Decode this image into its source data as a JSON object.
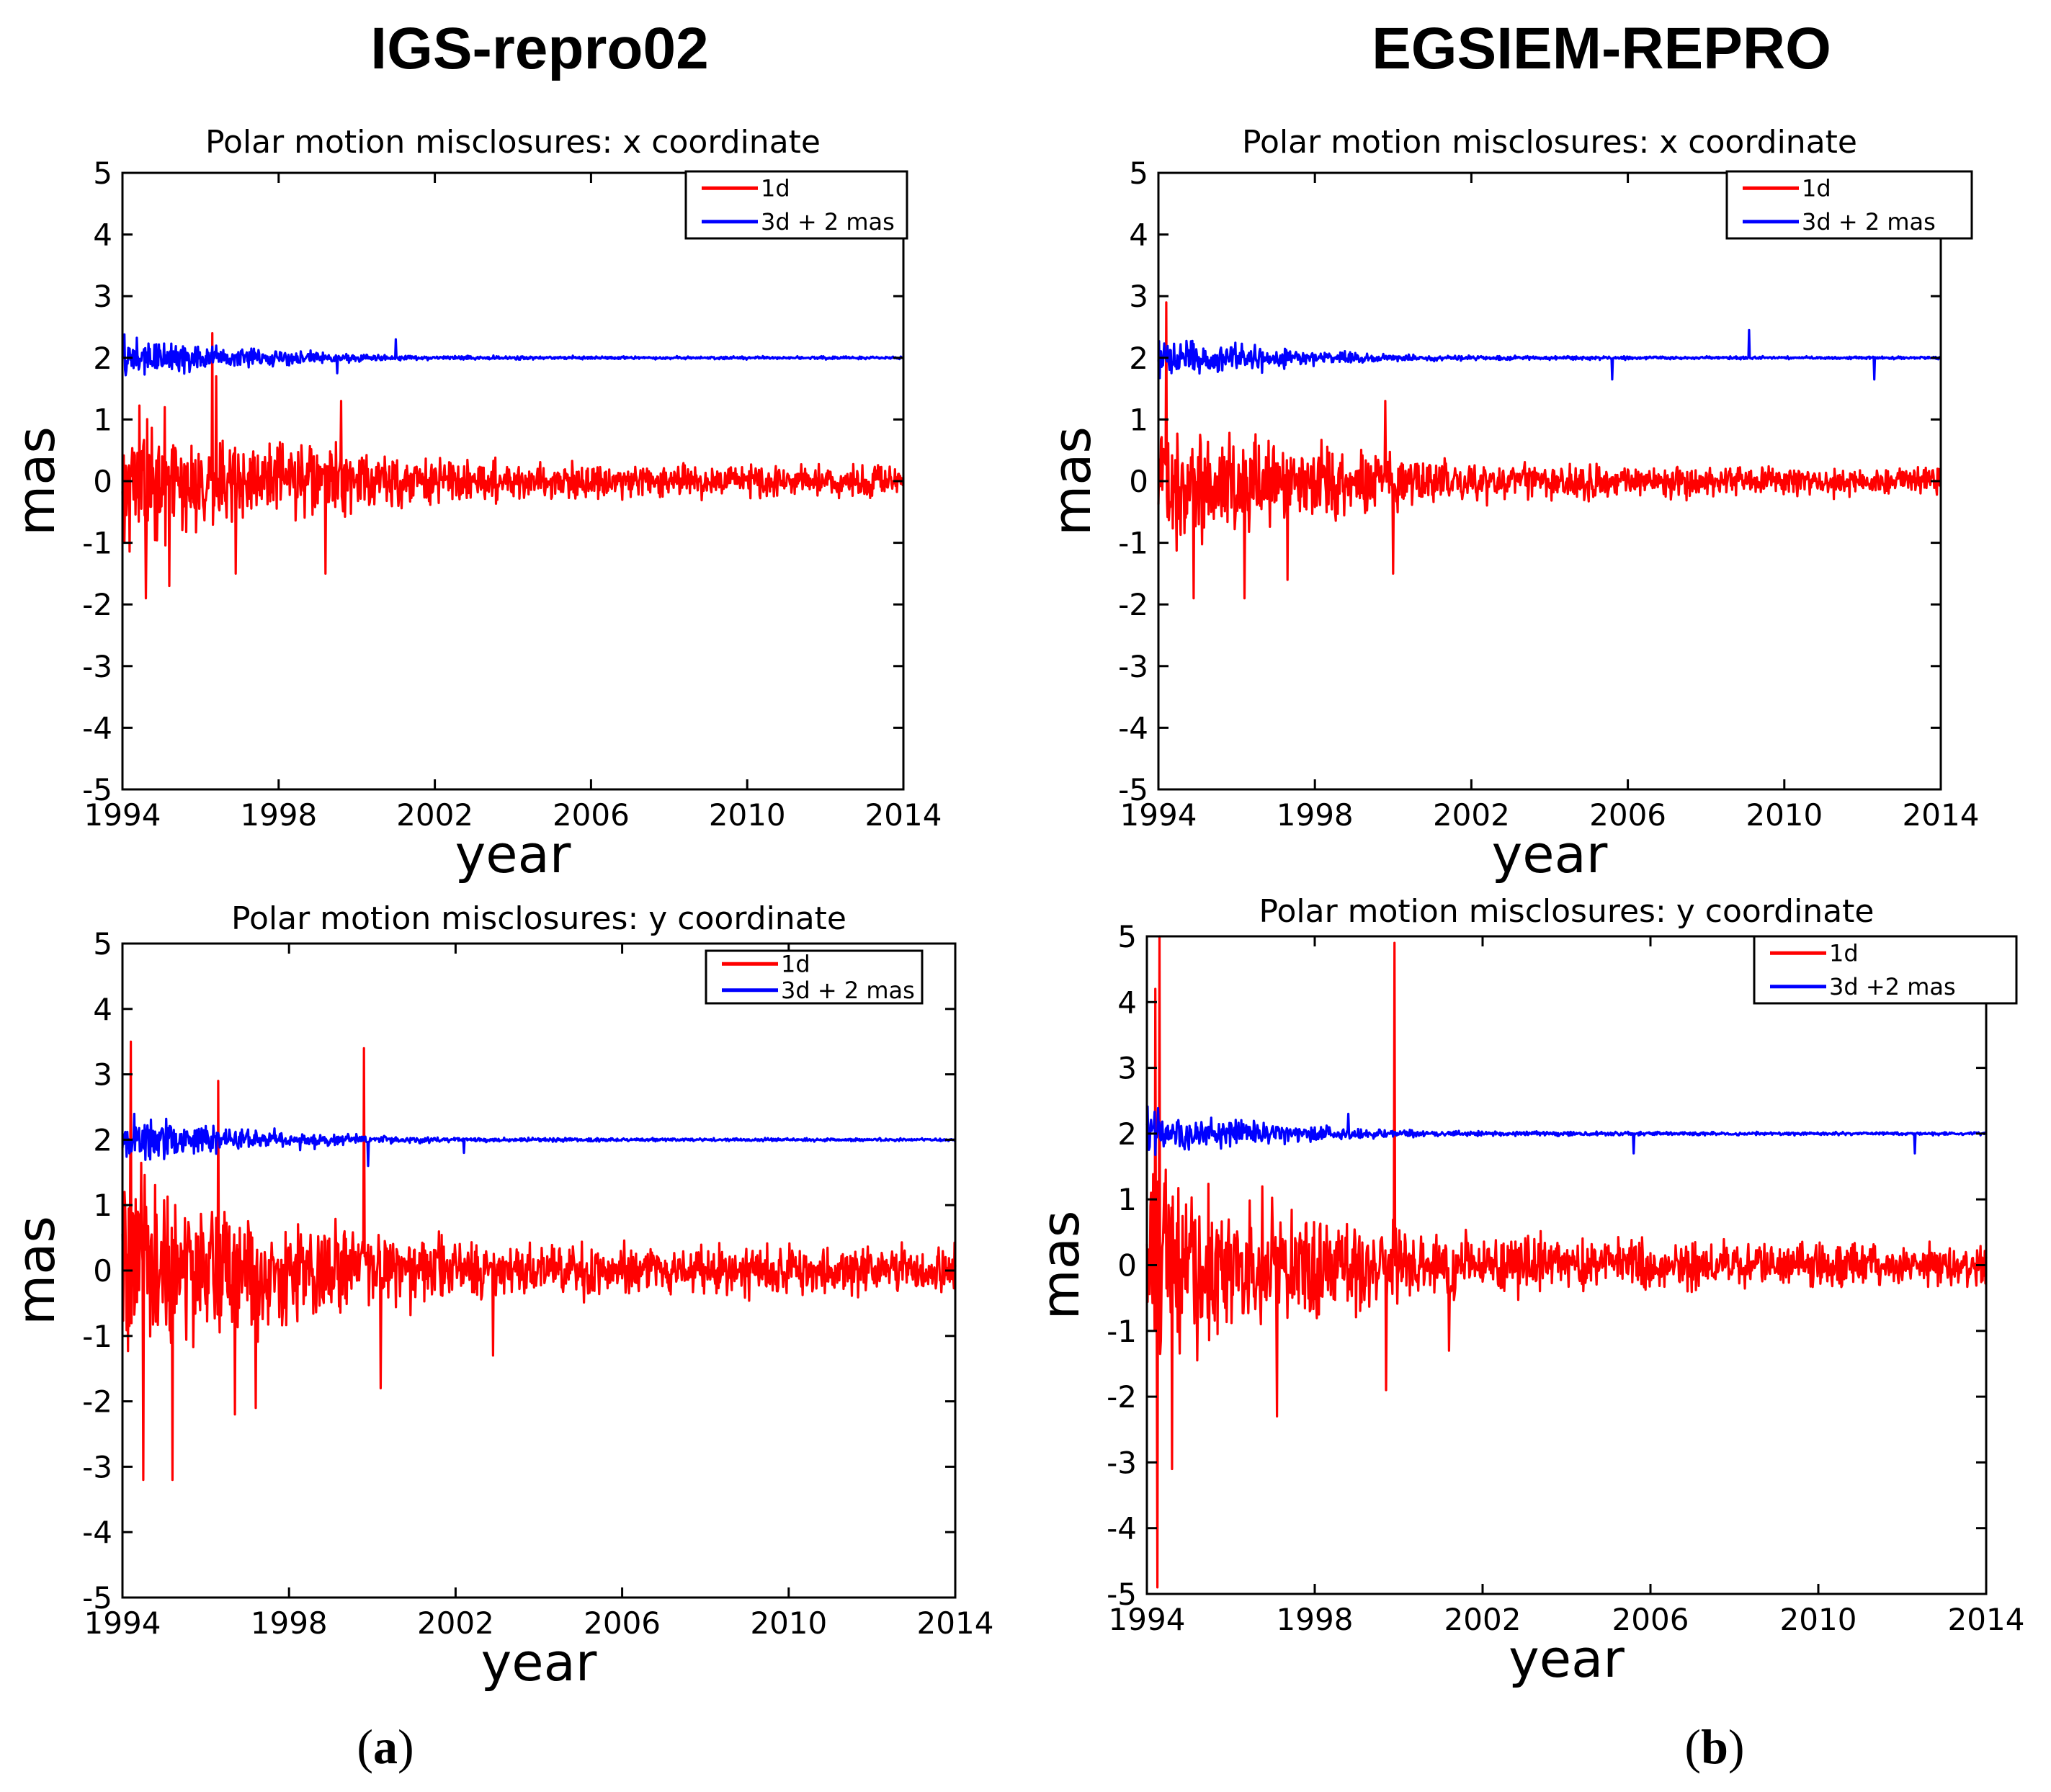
{
  "column_titles": {
    "left": "IGS-repro02",
    "right": "EGSIEM-REPRO"
  },
  "panel_labels": {
    "left_open": "(",
    "left_letter": "a",
    "left_close": ")",
    "right_open": "(",
    "right_letter": "b",
    "right_close": ")"
  },
  "colors": {
    "series_1d": "#ff0000",
    "series_3d": "#0000ff",
    "axes": "#000000"
  },
  "chart_data": [
    {
      "id": "igs-x",
      "type": "line",
      "title": "Polar motion misclosures: x coordinate",
      "xlabel": "year",
      "ylabel": "mas",
      "xlim": [
        1994,
        2014
      ],
      "ylim": [
        -5,
        5
      ],
      "xticks": [
        "1994",
        "1998",
        "2002",
        "2006",
        "2010",
        "2014"
      ],
      "yticks": [
        "5",
        "4",
        "3",
        "2",
        "1",
        "0",
        "-1",
        "-2",
        "-3",
        "-4",
        "-5"
      ],
      "legend": [
        "1d",
        "3d + 2 mas"
      ],
      "legend_position": "top-right",
      "series": [
        {
          "name": "1d",
          "color": "#ff0000",
          "center": 0,
          "env": [
            [
              1994,
              1.4
            ],
            [
              1995,
              1.3
            ],
            [
              1996,
              1.1
            ],
            [
              1998,
              0.95
            ],
            [
              2000,
              0.75
            ],
            [
              2002,
              0.5
            ],
            [
              2006,
              0.38
            ],
            [
              2014,
              0.32
            ]
          ],
          "max": 2.4,
          "min": -1.9,
          "spikes": [
            [
              1996.3,
              2.4
            ],
            [
              1996.4,
              1.7
            ],
            [
              1994.6,
              -1.9
            ],
            [
              1995.2,
              -1.7
            ],
            [
              1996.9,
              -1.5
            ],
            [
              1999.2,
              -1.5
            ],
            [
              1999.6,
              1.3
            ]
          ]
        },
        {
          "name": "3d + 2 mas",
          "color": "#0000ff",
          "center": 2,
          "env": [
            [
              1994,
              0.45
            ],
            [
              1995,
              0.42
            ],
            [
              1996,
              0.3
            ],
            [
              1998,
              0.17
            ],
            [
              2000,
              0.09
            ],
            [
              2002,
              0.05
            ],
            [
              2006,
              0.035
            ],
            [
              2014,
              0.03
            ]
          ],
          "max": 2.5,
          "min": 1.4,
          "spikes": [
            [
              2001.0,
              2.3
            ],
            [
              1999.5,
              1.75
            ]
          ]
        }
      ]
    },
    {
      "id": "egsiem-x",
      "type": "line",
      "title": "Polar motion misclosures: x coordinate",
      "xlabel": "year",
      "ylabel": "mas",
      "xlim": [
        1994,
        2014
      ],
      "ylim": [
        -5,
        5
      ],
      "xticks": [
        "1994",
        "1998",
        "2002",
        "2006",
        "2010",
        "2014"
      ],
      "yticks": [
        "5",
        "4",
        "3",
        "2",
        "1",
        "0",
        "-1",
        "-2",
        "-3",
        "-4",
        "-5"
      ],
      "legend": [
        "1d",
        "3d + 2 mas"
      ],
      "legend_position": "top-right",
      "series": [
        {
          "name": "1d",
          "color": "#ff0000",
          "center": 0,
          "env": [
            [
              1994,
              1.5
            ],
            [
              1995,
              1.35
            ],
            [
              1996,
              1.1
            ],
            [
              1998,
              0.9
            ],
            [
              2000,
              0.6
            ],
            [
              2002,
              0.42
            ],
            [
              2006,
              0.35
            ],
            [
              2014,
              0.3
            ]
          ],
          "max": 2.9,
          "min": -1.9,
          "spikes": [
            [
              1994.2,
              2.9
            ],
            [
              1994.9,
              -1.9
            ],
            [
              1996.2,
              -1.9
            ],
            [
              1999.8,
              1.3
            ],
            [
              2000.0,
              -1.5
            ],
            [
              1997.3,
              -1.6
            ]
          ]
        },
        {
          "name": "3d + 2 mas",
          "color": "#0000ff",
          "center": 2,
          "env": [
            [
              1994,
              0.45
            ],
            [
              1995,
              0.42
            ],
            [
              1996,
              0.3
            ],
            [
              1998,
              0.16
            ],
            [
              2000,
              0.08
            ],
            [
              2002,
              0.05
            ],
            [
              2006,
              0.035
            ],
            [
              2014,
              0.03
            ]
          ],
          "max": 2.45,
          "min": 1.5,
          "spikes": [
            [
              2009.1,
              2.45
            ],
            [
              2005.6,
              1.65
            ],
            [
              2012.3,
              1.65
            ]
          ]
        }
      ]
    },
    {
      "id": "igs-y",
      "type": "line",
      "title": "Polar motion misclosures: y coordinate",
      "xlabel": "year",
      "ylabel": "mas",
      "xlim": [
        1994,
        2014
      ],
      "ylim": [
        -5,
        5
      ],
      "xticks": [
        "1994",
        "1998",
        "2002",
        "2006",
        "2010",
        "2014"
      ],
      "yticks": [
        "5",
        "4",
        "3",
        "2",
        "1",
        "0",
        "-1",
        "-2",
        "-3",
        "-4",
        "-5"
      ],
      "legend": [
        "1d",
        "3d + 2 mas"
      ],
      "legend_position": "top-right",
      "series": [
        {
          "name": "1d",
          "color": "#ff0000",
          "center": 0,
          "env": [
            [
              1994,
              2.0
            ],
            [
              1995,
              1.8
            ],
            [
              1996,
              1.5
            ],
            [
              1998,
              1.15
            ],
            [
              2000,
              0.85
            ],
            [
              2002,
              0.65
            ],
            [
              2006,
              0.55
            ],
            [
              2014,
              0.5
            ]
          ],
          "max": 3.5,
          "min": -3.2,
          "spikes": [
            [
              1994.2,
              3.5
            ],
            [
              1994.5,
              -3.2
            ],
            [
              1995.2,
              -3.2
            ],
            [
              1996.3,
              2.9
            ],
            [
              1996.7,
              -2.2
            ],
            [
              1997.2,
              -2.1
            ],
            [
              1999.8,
              3.4
            ],
            [
              2000.2,
              -1.8
            ],
            [
              2002.9,
              -1.3
            ]
          ]
        },
        {
          "name": "3d + 2 mas",
          "color": "#0000ff",
          "center": 2,
          "env": [
            [
              1994,
              0.5
            ],
            [
              1995,
              0.42
            ],
            [
              1996,
              0.32
            ],
            [
              1998,
              0.18
            ],
            [
              2000,
              0.1
            ],
            [
              2002,
              0.05
            ],
            [
              2006,
              0.035
            ],
            [
              2014,
              0.03
            ]
          ],
          "max": 2.5,
          "min": 1.45,
          "spikes": [
            [
              1999.9,
              1.6
            ],
            [
              2002.2,
              1.8
            ]
          ]
        }
      ]
    },
    {
      "id": "egsiem-y",
      "type": "line",
      "title": "Polar motion misclosures: y coordinate",
      "xlabel": "year",
      "ylabel": "mas",
      "xlim": [
        1994,
        2014
      ],
      "ylim": [
        -5,
        5
      ],
      "xticks": [
        "1994",
        "1998",
        "2002",
        "2006",
        "2010",
        "2014"
      ],
      "yticks": [
        "5",
        "4",
        "3",
        "2",
        "1",
        "0",
        "-1",
        "-2",
        "-3",
        "-4",
        "-5"
      ],
      "legend": [
        "1d",
        "3d +2 mas"
      ],
      "legend_position": "top-right",
      "series": [
        {
          "name": "1d",
          "color": "#ff0000",
          "center": 0,
          "env": [
            [
              1994,
              2.2
            ],
            [
              1995,
              1.9
            ],
            [
              1996,
              1.55
            ],
            [
              1998,
              1.15
            ],
            [
              2000,
              0.85
            ],
            [
              2002,
              0.6
            ],
            [
              2006,
              0.5
            ],
            [
              2014,
              0.45
            ]
          ],
          "max": 5.0,
          "min": -5.0,
          "spikes": [
            [
              1994.3,
              5.0
            ],
            [
              1994.2,
              4.2
            ],
            [
              1994.25,
              -4.9
            ],
            [
              1994.6,
              -3.1
            ],
            [
              1999.9,
              4.9
            ],
            [
              1999.7,
              -1.9
            ],
            [
              2001.2,
              -1.3
            ],
            [
              1997.1,
              -2.3
            ]
          ]
        },
        {
          "name": "3d +2 mas",
          "color": "#0000ff",
          "center": 2,
          "env": [
            [
              1994,
              0.48
            ],
            [
              1995,
              0.42
            ],
            [
              1996,
              0.3
            ],
            [
              1998,
              0.16
            ],
            [
              2000,
              0.08
            ],
            [
              2002,
              0.05
            ],
            [
              2006,
              0.035
            ],
            [
              2014,
              0.03
            ]
          ],
          "max": 2.5,
          "min": 1.55,
          "spikes": [
            [
              2005.6,
              2.25
            ],
            [
              2005.6,
              1.7
            ],
            [
              2012.3,
              1.7
            ],
            [
              1998.8,
              2.3
            ]
          ]
        }
      ]
    }
  ]
}
